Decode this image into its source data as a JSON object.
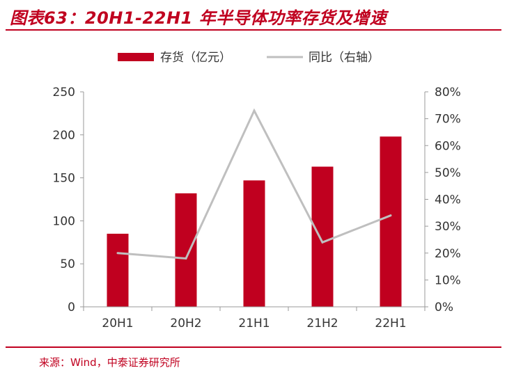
{
  "figure": {
    "title": "图表63：20H1-22H1 年半导体功率存货及增速",
    "source": "来源：Wind，中泰证券研究所"
  },
  "chart_data": {
    "type": "bar",
    "categories": [
      "20H1",
      "20H2",
      "21H1",
      "21H2",
      "22H1"
    ],
    "series": [
      {
        "name": "存货（亿元）",
        "type": "bar",
        "axis": "left",
        "values": [
          85,
          132,
          147,
          163,
          198
        ],
        "color": "#c0001f"
      },
      {
        "name": "同比（右轴）",
        "type": "line",
        "axis": "right",
        "values": [
          0.2,
          0.18,
          0.73,
          0.24,
          0.34
        ],
        "color": "#bfbfbf"
      }
    ],
    "y_left": {
      "ylim": [
        0,
        250
      ],
      "ticks": [
        0,
        50,
        100,
        150,
        200,
        250
      ],
      "tick_labels": [
        "0",
        "50",
        "100",
        "150",
        "200",
        "250"
      ]
    },
    "y_right": {
      "ylim": [
        0,
        0.8
      ],
      "ticks": [
        0,
        0.1,
        0.2,
        0.3,
        0.4,
        0.5,
        0.6,
        0.7,
        0.8
      ],
      "tick_labels": [
        "0%",
        "10%",
        "20%",
        "30%",
        "40%",
        "50%",
        "60%",
        "70%",
        "80%"
      ]
    },
    "grid": false,
    "legend": "top-center"
  }
}
